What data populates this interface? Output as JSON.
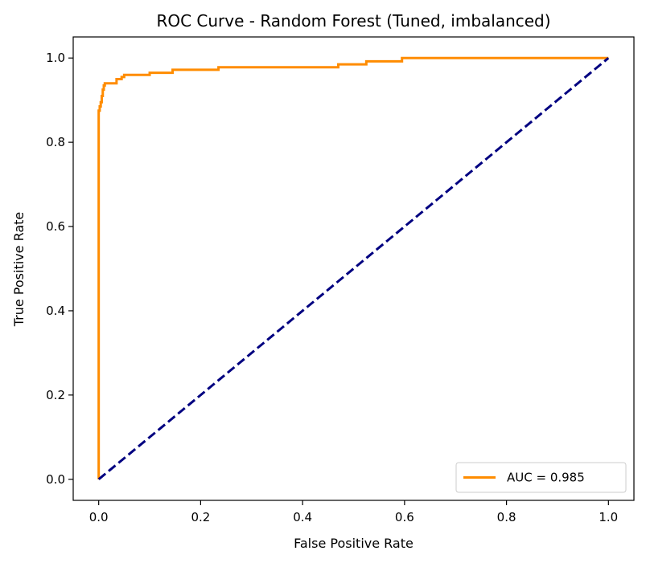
{
  "chart_data": {
    "type": "line",
    "title": "ROC Curve - Random Forest (Tuned, imbalanced)",
    "xlabel": "False Positive Rate",
    "ylabel": "True Positive Rate",
    "xlim": [
      -0.05,
      1.05
    ],
    "ylim": [
      -0.05,
      1.05
    ],
    "xticks": [
      0.0,
      0.2,
      0.4,
      0.6,
      0.8,
      1.0
    ],
    "yticks": [
      0.0,
      0.2,
      0.4,
      0.6,
      0.8,
      1.0
    ],
    "xtick_labels": [
      "0.0",
      "0.2",
      "0.4",
      "0.6",
      "0.8",
      "1.0"
    ],
    "ytick_labels": [
      "0.0",
      "0.2",
      "0.4",
      "0.6",
      "0.8",
      "1.0"
    ],
    "grid": false,
    "legend_position": "lower-right",
    "series": [
      {
        "name": "AUC = 0.985",
        "color": "#ff8c00",
        "style": "solid",
        "x": [
          0.0,
          0.0,
          0.002,
          0.002,
          0.004,
          0.004,
          0.006,
          0.006,
          0.008,
          0.008,
          0.01,
          0.01,
          0.012,
          0.012,
          0.02,
          0.02,
          0.035,
          0.035,
          0.045,
          0.045,
          0.05,
          0.05,
          0.1,
          0.1,
          0.145,
          0.145,
          0.235,
          0.235,
          0.47,
          0.47,
          0.525,
          0.525,
          0.595,
          0.595,
          1.0
        ],
        "y": [
          0.0,
          0.875,
          0.875,
          0.885,
          0.885,
          0.895,
          0.895,
          0.91,
          0.91,
          0.925,
          0.925,
          0.935,
          0.935,
          0.94,
          0.94,
          0.94,
          0.94,
          0.95,
          0.95,
          0.955,
          0.955,
          0.96,
          0.96,
          0.965,
          0.965,
          0.972,
          0.972,
          0.978,
          0.978,
          0.985,
          0.985,
          0.992,
          0.992,
          1.0,
          1.0
        ]
      },
      {
        "color": "#000080",
        "style": "dashed",
        "x": [
          0.0,
          1.0
        ],
        "y": [
          0.0,
          1.0
        ]
      }
    ],
    "auc": 0.985
  }
}
